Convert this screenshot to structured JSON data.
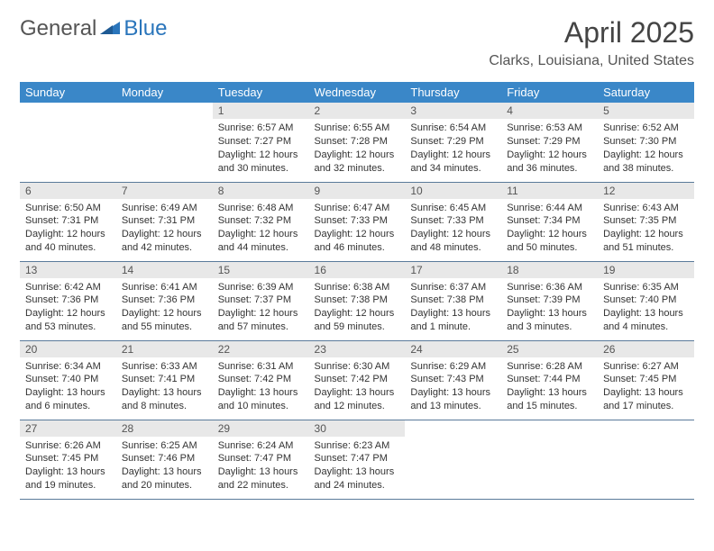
{
  "logo": {
    "text1": "General",
    "text2": "Blue"
  },
  "title": "April 2025",
  "location": "Clarks, Louisiana, United States",
  "weekdays": [
    "Sunday",
    "Monday",
    "Tuesday",
    "Wednesday",
    "Thursday",
    "Friday",
    "Saturday"
  ],
  "colors": {
    "header_bg": "#3a87c8",
    "header_text": "#ffffff",
    "daynum_bg": "#e8e8e8",
    "border": "#5a7a9a",
    "logo_gray": "#555555",
    "logo_blue": "#2a75bb"
  },
  "weeks": [
    [
      null,
      null,
      {
        "n": "1",
        "sr": "Sunrise: 6:57 AM",
        "ss": "Sunset: 7:27 PM",
        "dl": "Daylight: 12 hours and 30 minutes."
      },
      {
        "n": "2",
        "sr": "Sunrise: 6:55 AM",
        "ss": "Sunset: 7:28 PM",
        "dl": "Daylight: 12 hours and 32 minutes."
      },
      {
        "n": "3",
        "sr": "Sunrise: 6:54 AM",
        "ss": "Sunset: 7:29 PM",
        "dl": "Daylight: 12 hours and 34 minutes."
      },
      {
        "n": "4",
        "sr": "Sunrise: 6:53 AM",
        "ss": "Sunset: 7:29 PM",
        "dl": "Daylight: 12 hours and 36 minutes."
      },
      {
        "n": "5",
        "sr": "Sunrise: 6:52 AM",
        "ss": "Sunset: 7:30 PM",
        "dl": "Daylight: 12 hours and 38 minutes."
      }
    ],
    [
      {
        "n": "6",
        "sr": "Sunrise: 6:50 AM",
        "ss": "Sunset: 7:31 PM",
        "dl": "Daylight: 12 hours and 40 minutes."
      },
      {
        "n": "7",
        "sr": "Sunrise: 6:49 AM",
        "ss": "Sunset: 7:31 PM",
        "dl": "Daylight: 12 hours and 42 minutes."
      },
      {
        "n": "8",
        "sr": "Sunrise: 6:48 AM",
        "ss": "Sunset: 7:32 PM",
        "dl": "Daylight: 12 hours and 44 minutes."
      },
      {
        "n": "9",
        "sr": "Sunrise: 6:47 AM",
        "ss": "Sunset: 7:33 PM",
        "dl": "Daylight: 12 hours and 46 minutes."
      },
      {
        "n": "10",
        "sr": "Sunrise: 6:45 AM",
        "ss": "Sunset: 7:33 PM",
        "dl": "Daylight: 12 hours and 48 minutes."
      },
      {
        "n": "11",
        "sr": "Sunrise: 6:44 AM",
        "ss": "Sunset: 7:34 PM",
        "dl": "Daylight: 12 hours and 50 minutes."
      },
      {
        "n": "12",
        "sr": "Sunrise: 6:43 AM",
        "ss": "Sunset: 7:35 PM",
        "dl": "Daylight: 12 hours and 51 minutes."
      }
    ],
    [
      {
        "n": "13",
        "sr": "Sunrise: 6:42 AM",
        "ss": "Sunset: 7:36 PM",
        "dl": "Daylight: 12 hours and 53 minutes."
      },
      {
        "n": "14",
        "sr": "Sunrise: 6:41 AM",
        "ss": "Sunset: 7:36 PM",
        "dl": "Daylight: 12 hours and 55 minutes."
      },
      {
        "n": "15",
        "sr": "Sunrise: 6:39 AM",
        "ss": "Sunset: 7:37 PM",
        "dl": "Daylight: 12 hours and 57 minutes."
      },
      {
        "n": "16",
        "sr": "Sunrise: 6:38 AM",
        "ss": "Sunset: 7:38 PM",
        "dl": "Daylight: 12 hours and 59 minutes."
      },
      {
        "n": "17",
        "sr": "Sunrise: 6:37 AM",
        "ss": "Sunset: 7:38 PM",
        "dl": "Daylight: 13 hours and 1 minute."
      },
      {
        "n": "18",
        "sr": "Sunrise: 6:36 AM",
        "ss": "Sunset: 7:39 PM",
        "dl": "Daylight: 13 hours and 3 minutes."
      },
      {
        "n": "19",
        "sr": "Sunrise: 6:35 AM",
        "ss": "Sunset: 7:40 PM",
        "dl": "Daylight: 13 hours and 4 minutes."
      }
    ],
    [
      {
        "n": "20",
        "sr": "Sunrise: 6:34 AM",
        "ss": "Sunset: 7:40 PM",
        "dl": "Daylight: 13 hours and 6 minutes."
      },
      {
        "n": "21",
        "sr": "Sunrise: 6:33 AM",
        "ss": "Sunset: 7:41 PM",
        "dl": "Daylight: 13 hours and 8 minutes."
      },
      {
        "n": "22",
        "sr": "Sunrise: 6:31 AM",
        "ss": "Sunset: 7:42 PM",
        "dl": "Daylight: 13 hours and 10 minutes."
      },
      {
        "n": "23",
        "sr": "Sunrise: 6:30 AM",
        "ss": "Sunset: 7:42 PM",
        "dl": "Daylight: 13 hours and 12 minutes."
      },
      {
        "n": "24",
        "sr": "Sunrise: 6:29 AM",
        "ss": "Sunset: 7:43 PM",
        "dl": "Daylight: 13 hours and 13 minutes."
      },
      {
        "n": "25",
        "sr": "Sunrise: 6:28 AM",
        "ss": "Sunset: 7:44 PM",
        "dl": "Daylight: 13 hours and 15 minutes."
      },
      {
        "n": "26",
        "sr": "Sunrise: 6:27 AM",
        "ss": "Sunset: 7:45 PM",
        "dl": "Daylight: 13 hours and 17 minutes."
      }
    ],
    [
      {
        "n": "27",
        "sr": "Sunrise: 6:26 AM",
        "ss": "Sunset: 7:45 PM",
        "dl": "Daylight: 13 hours and 19 minutes."
      },
      {
        "n": "28",
        "sr": "Sunrise: 6:25 AM",
        "ss": "Sunset: 7:46 PM",
        "dl": "Daylight: 13 hours and 20 minutes."
      },
      {
        "n": "29",
        "sr": "Sunrise: 6:24 AM",
        "ss": "Sunset: 7:47 PM",
        "dl": "Daylight: 13 hours and 22 minutes."
      },
      {
        "n": "30",
        "sr": "Sunrise: 6:23 AM",
        "ss": "Sunset: 7:47 PM",
        "dl": "Daylight: 13 hours and 24 minutes."
      },
      null,
      null,
      null
    ]
  ]
}
